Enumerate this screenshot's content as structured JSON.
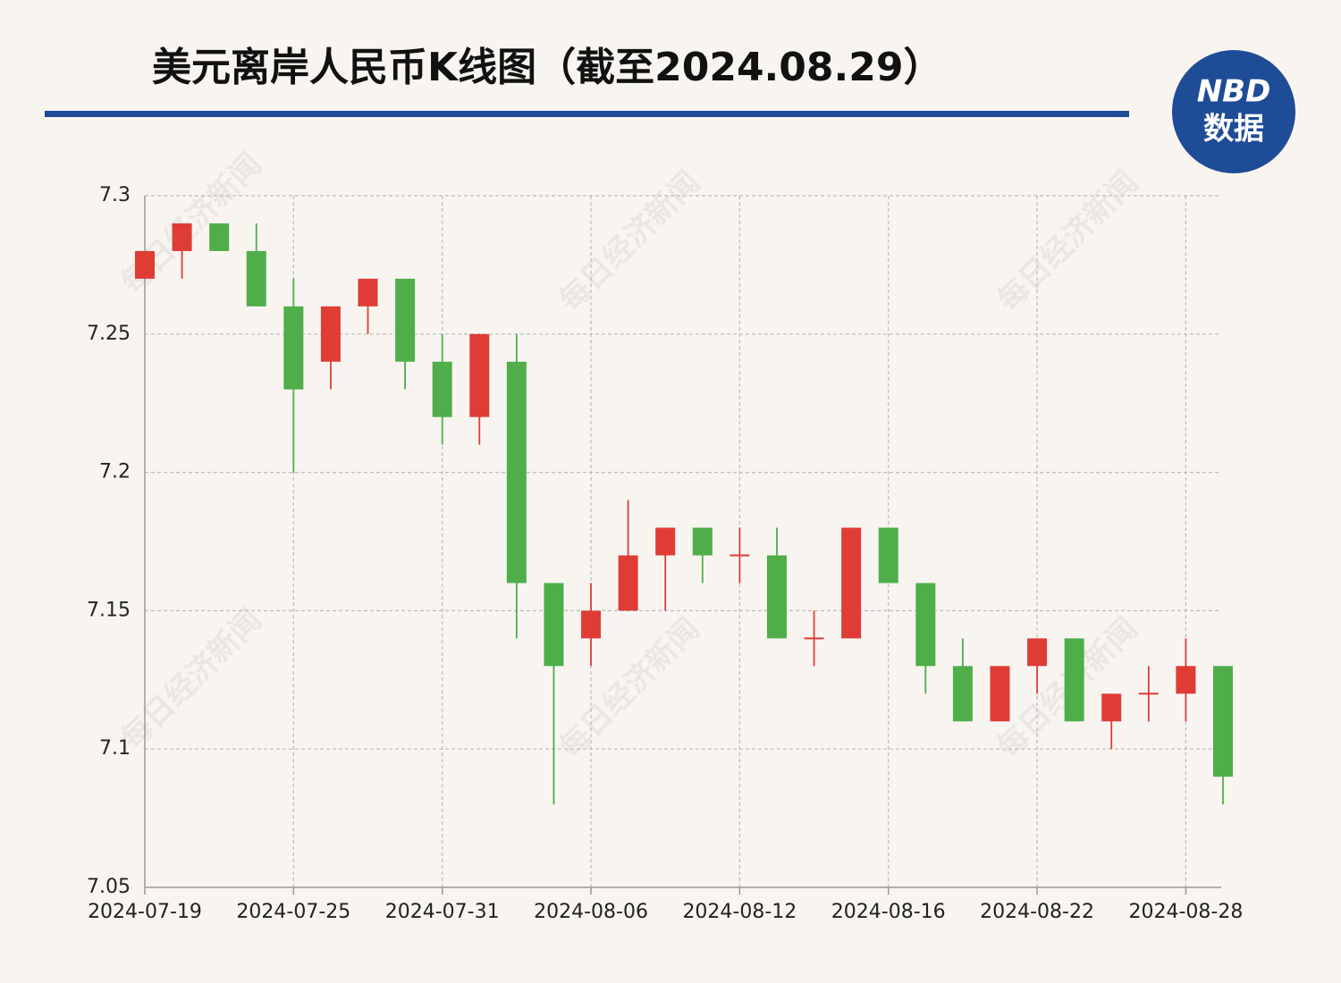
{
  "chart_data": {
    "type": "candlestick",
    "title": "美元离岸人民币K线图（截至2024.08.29）",
    "logo": {
      "top": "NBD",
      "bottom": "数据"
    },
    "watermark": "每日经济新闻",
    "categories": [
      "2024-07-19",
      null,
      null,
      null,
      "2024-07-25",
      null,
      null,
      null,
      "2024-07-31",
      null,
      null,
      null,
      "2024-08-06",
      null,
      null,
      null,
      "2024-08-12",
      null,
      null,
      null,
      "2024-08-16",
      null,
      null,
      null,
      "2024-08-22",
      null,
      null,
      null,
      "2024-08-28",
      null
    ],
    "open": [
      7.27,
      7.28,
      7.29,
      7.28,
      7.26,
      7.24,
      7.26,
      7.27,
      7.24,
      7.22,
      7.24,
      7.16,
      7.14,
      7.15,
      7.17,
      7.18,
      7.17,
      7.17,
      7.14,
      7.14,
      7.18,
      7.16,
      7.13,
      7.11,
      7.13,
      7.14,
      7.11,
      7.12,
      7.12,
      7.13
    ],
    "high": [
      7.28,
      7.29,
      7.29,
      7.29,
      7.27,
      7.26,
      7.27,
      7.27,
      7.25,
      7.25,
      7.25,
      7.16,
      7.16,
      7.19,
      7.18,
      7.18,
      7.18,
      7.18,
      7.15,
      7.18,
      7.18,
      7.16,
      7.14,
      7.13,
      7.14,
      7.14,
      7.12,
      7.13,
      7.14,
      7.13
    ],
    "low": [
      7.27,
      7.27,
      7.28,
      7.26,
      7.2,
      7.23,
      7.25,
      7.23,
      7.21,
      7.21,
      7.14,
      7.08,
      7.13,
      7.15,
      7.15,
      7.16,
      7.16,
      7.14,
      7.13,
      7.14,
      7.16,
      7.12,
      7.11,
      7.11,
      7.12,
      7.11,
      7.1,
      7.11,
      7.11,
      7.08
    ],
    "close": [
      7.28,
      7.29,
      7.28,
      7.26,
      7.23,
      7.26,
      7.27,
      7.24,
      7.22,
      7.25,
      7.16,
      7.13,
      7.15,
      7.17,
      7.18,
      7.17,
      7.17,
      7.14,
      7.14,
      7.18,
      7.16,
      7.13,
      7.11,
      7.13,
      7.14,
      7.11,
      7.12,
      7.12,
      7.13,
      7.09
    ],
    "up_color": "#e03c36",
    "down_color": "#4fae4a",
    "ylim": [
      7.05,
      7.3
    ],
    "yticks": [
      7.05,
      7.1,
      7.15,
      7.2,
      7.25,
      7.3
    ],
    "grid": true
  }
}
